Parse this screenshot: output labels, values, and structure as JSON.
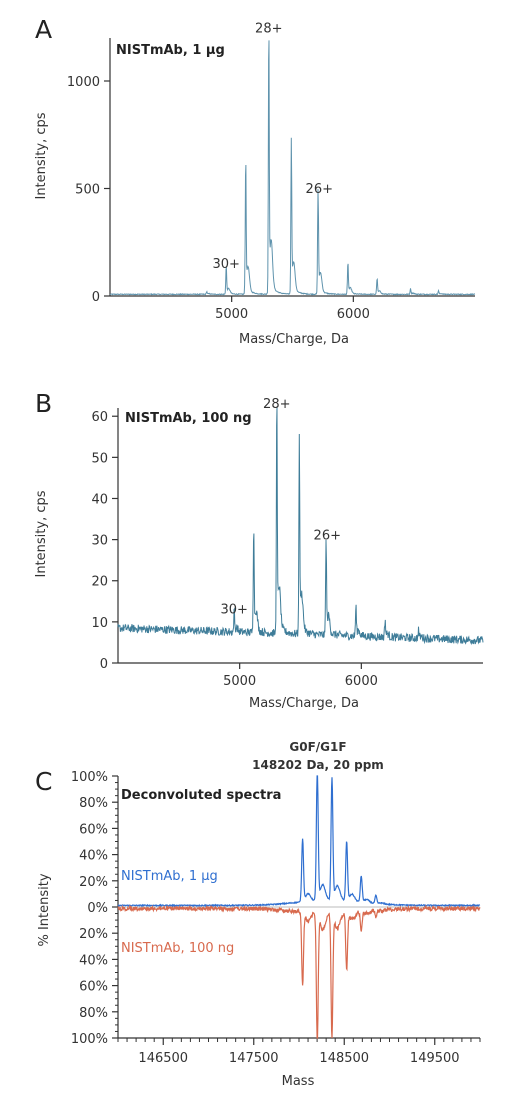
{
  "chart_data": [
    {
      "panel": "A",
      "type": "line",
      "xlabel": "Mass/Charge, Da",
      "ylabel": "Intensity, cps",
      "xlim": [
        4000,
        7000
      ],
      "ylim": [
        0,
        1200
      ],
      "xticks": [
        5000,
        6000
      ],
      "xtick_labels": [
        "5000",
        "6000"
      ],
      "yticks": [
        0,
        500,
        1000
      ],
      "ytick_labels": [
        "0",
        "500",
        "1000"
      ],
      "grid": false,
      "inset_label": "NISTmAb, 1 µg",
      "color": "#5f93ad",
      "annotations": [
        {
          "text": "28+",
          "x": 5305,
          "y": 1225
        },
        {
          "text": "26+",
          "x": 5720,
          "y": 480
        },
        {
          "text": "30+",
          "x": 4955,
          "y": 130
        }
      ],
      "peaks": [
        {
          "x": 4795,
          "h": 12
        },
        {
          "x": 4955,
          "h": 125
        },
        {
          "x": 5115,
          "h": 600
        },
        {
          "x": 5305,
          "h": 1180
        },
        {
          "x": 5490,
          "h": 700
        },
        {
          "x": 5710,
          "h": 470
        },
        {
          "x": 5955,
          "h": 140
        },
        {
          "x": 6195,
          "h": 70
        },
        {
          "x": 6470,
          "h": 25
        },
        {
          "x": 6700,
          "h": 15
        }
      ],
      "baseline": 8,
      "noise": 2
    },
    {
      "panel": "B",
      "type": "line",
      "xlabel": "Mass/Charge, Da",
      "ylabel": "Intensity, cps",
      "xlim": [
        4000,
        7000
      ],
      "ylim": [
        0,
        62
      ],
      "xticks": [
        5000,
        6000
      ],
      "xtick_labels": [
        "5000",
        "6000"
      ],
      "yticks": [
        0,
        10,
        20,
        30,
        40,
        50,
        60
      ],
      "ytick_labels": [
        "0",
        "10",
        "20",
        "30",
        "40",
        "50",
        "60"
      ],
      "grid": false,
      "inset_label": "NISTmAb, 100 ng",
      "color": "#3f7d99",
      "annotations": [
        {
          "text": "28+",
          "x": 5305,
          "y": 62
        },
        {
          "text": "26+",
          "x": 5720,
          "y": 30
        },
        {
          "text": "30+",
          "x": 4955,
          "y": 12
        }
      ],
      "peaks": [
        {
          "x": 4955,
          "h": 5
        },
        {
          "x": 5115,
          "h": 25
        },
        {
          "x": 5305,
          "h": 54
        },
        {
          "x": 5490,
          "h": 46
        },
        {
          "x": 5710,
          "h": 22
        },
        {
          "x": 5955,
          "h": 7
        },
        {
          "x": 6195,
          "h": 4
        },
        {
          "x": 6470,
          "h": 2
        }
      ],
      "baseline_start": 8.5,
      "baseline_end": 5.5,
      "noise": 1.0
    },
    {
      "panel": "C",
      "type": "line",
      "title": "Deconvoluted spectra",
      "xlabel": "Mass",
      "ylabel": "% Intensity",
      "xlim": [
        146000,
        150000
      ],
      "ylim": [
        -100,
        100
      ],
      "xticks": [
        146500,
        147500,
        148500,
        149500
      ],
      "xtick_labels": [
        "146500",
        "147500",
        "148500",
        "149500"
      ],
      "yticks": [
        100,
        80,
        60,
        40,
        20,
        0,
        -20,
        -40,
        -60,
        -80,
        -100
      ],
      "ytick_labels": [
        "100%",
        "80%",
        "60%",
        "40%",
        "20%",
        "0%",
        "20%",
        "40%",
        "60%",
        "80%",
        "100%"
      ],
      "grid": false,
      "annotation_lines": [
        "G0F/G1F",
        "148202 Da, 20 ppm"
      ],
      "series": [
        {
          "name": "NISTmAb, 1 µg",
          "color": "#2f6fd0",
          "sign": 1,
          "peaks": [
            {
              "x": 148040,
              "h": 48
            },
            {
              "x": 148202,
              "h": 100
            },
            {
              "x": 148364,
              "h": 93
            },
            {
              "x": 148526,
              "h": 45
            },
            {
              "x": 148688,
              "h": 20
            },
            {
              "x": 148850,
              "h": 6
            }
          ]
        },
        {
          "name": "NISTmAb, 100 ng",
          "color": "#d86a4e",
          "sign": -1,
          "peaks": [
            {
              "x": 148040,
              "h": 56
            },
            {
              "x": 148202,
              "h": 100
            },
            {
              "x": 148364,
              "h": 94
            },
            {
              "x": 148526,
              "h": 43
            },
            {
              "x": 148688,
              "h": 14
            },
            {
              "x": 148850,
              "h": 5
            }
          ]
        }
      ]
    }
  ],
  "panel_letters": [
    "A",
    "B",
    "C"
  ],
  "axis_color": "#333333",
  "zero_line_color": "#bbbbbb"
}
